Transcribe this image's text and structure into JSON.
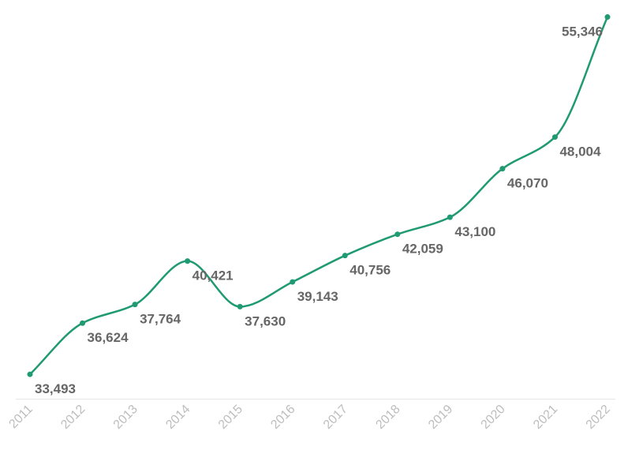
{
  "chart_data": {
    "type": "line",
    "categories": [
      "2011",
      "2012",
      "2013",
      "2014",
      "2015",
      "2016",
      "2017",
      "2018",
      "2019",
      "2020",
      "2021",
      "2022"
    ],
    "series": [
      {
        "values": [
          33493,
          36624,
          37764,
          40421,
          37630,
          39143,
          40756,
          42059,
          43100,
          46070,
          48004,
          55346
        ],
        "labels": [
          "33,493",
          "36,624",
          "37,764",
          "40,421",
          "37,630",
          "39,143",
          "40,756",
          "42,059",
          "43,100",
          "46,070",
          "48,004",
          "55,346"
        ]
      }
    ],
    "title": "",
    "xlabel": "",
    "ylabel": "",
    "ylim": [
      32000,
      56000
    ],
    "grid": false,
    "legend": "none",
    "colors": {
      "line": "#1f9a72",
      "label": "#666666",
      "tick": "#bdbdbd",
      "axis": "#e6e6e6"
    }
  }
}
